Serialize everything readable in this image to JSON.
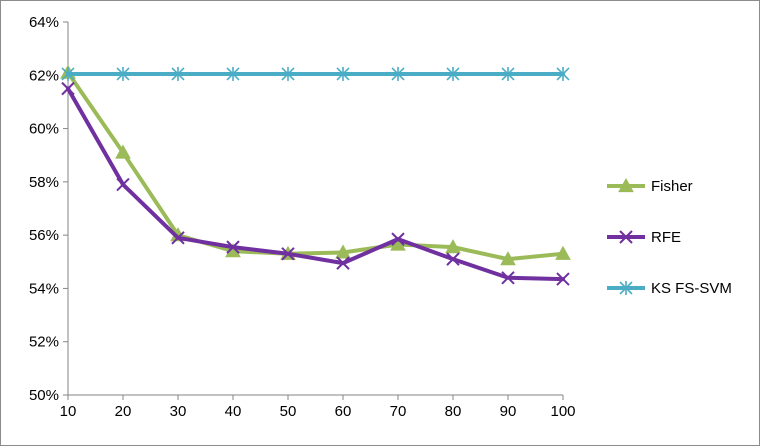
{
  "chart_data": {
    "type": "line",
    "title": "",
    "xlabel": "",
    "ylabel": "",
    "x": [
      10,
      20,
      30,
      40,
      50,
      60,
      70,
      80,
      90,
      100
    ],
    "x_tick_labels": [
      "10",
      "20",
      "30",
      "40",
      "50",
      "60",
      "70",
      "80",
      "90",
      "100"
    ],
    "ylim": [
      50,
      64
    ],
    "y_ticks": [
      50,
      52,
      54,
      56,
      58,
      60,
      62,
      64
    ],
    "y_tick_labels": [
      "50%",
      "52%",
      "54%",
      "56%",
      "58%",
      "60%",
      "62%",
      "64%"
    ],
    "y_unit": "%",
    "grid": false,
    "legend_position": "right",
    "series": [
      {
        "name": "Fisher",
        "color": "#9bbb59",
        "marker": "triangle",
        "values": [
          62.1,
          59.1,
          56.0,
          55.4,
          55.3,
          55.35,
          55.65,
          55.55,
          55.1,
          55.3
        ]
      },
      {
        "name": "RFE",
        "color": "#7030a0",
        "marker": "x",
        "values": [
          61.5,
          57.9,
          55.9,
          55.55,
          55.3,
          54.95,
          55.85,
          55.1,
          54.4,
          54.35
        ]
      },
      {
        "name": "KS FS-SVM",
        "color": "#4bacc6",
        "marker": "star",
        "values": [
          62.05,
          62.05,
          62.05,
          62.05,
          62.05,
          62.05,
          62.05,
          62.05,
          62.05,
          62.05
        ]
      }
    ]
  }
}
